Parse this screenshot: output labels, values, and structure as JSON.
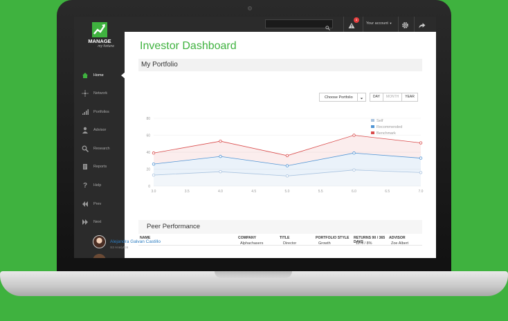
{
  "sidebar": {
    "logo": {
      "title": "MANAGE",
      "subtitle": "my fortune"
    },
    "items": [
      {
        "label": "Home",
        "icon": "home-icon"
      },
      {
        "label": "Network",
        "icon": "network-icon"
      },
      {
        "label": "Portfolios",
        "icon": "bars-icon"
      },
      {
        "label": "Advisor",
        "icon": "person-icon"
      },
      {
        "label": "Research",
        "icon": "search-icon"
      },
      {
        "label": "Reports",
        "icon": "document-icon"
      },
      {
        "label": "Help",
        "icon": "question-icon"
      },
      {
        "label": "Prev",
        "icon": "double-left-icon"
      },
      {
        "label": "Next",
        "icon": "double-right-icon"
      }
    ]
  },
  "topbar": {
    "search_placeholder": "",
    "alert_count": "1",
    "account_label": "Your account"
  },
  "main": {
    "title": "Investor Dashboard",
    "portfolio_section": "My Portfolio",
    "choose_portfolio": "Choose Portfolio",
    "periods": [
      "DAY",
      "MONTH",
      "YEAR"
    ],
    "peer_section": "Peer Performance"
  },
  "chart_data": {
    "type": "area",
    "x": [
      3.0,
      4.0,
      5.0,
      6.0,
      7.0
    ],
    "xticks": [
      "3.0",
      "3.5",
      "4.0",
      "4.5",
      "5.0",
      "5.5",
      "6.0",
      "6.5",
      "7.0"
    ],
    "yticks": [
      "0",
      "20",
      "40",
      "60",
      "80"
    ],
    "ylim": [
      0,
      80
    ],
    "xlim": [
      3.0,
      7.0
    ],
    "grid": true,
    "legend_position": "top-right",
    "series": [
      {
        "name": "Self",
        "color": "#a9c3df",
        "values": [
          13,
          17,
          12,
          19,
          16
        ]
      },
      {
        "name": "Recommended",
        "color": "#4f94d4",
        "values": [
          26,
          35,
          24,
          39,
          33
        ]
      },
      {
        "name": "Benchmark",
        "color": "#d94a4a",
        "values": [
          39,
          53,
          36,
          60,
          51
        ]
      }
    ]
  },
  "table": {
    "headers": [
      "NAME",
      "COMPANY",
      "TITLE",
      "PORTFOLIO STYLE",
      "RETURNS 90 / 365 DAYS",
      "ADVISOR"
    ],
    "rows": [
      {
        "name": "Alejandra Galvan Castillo",
        "sub": "S2 Analytics",
        "company": "Alphachasers",
        "title": "Director",
        "style": "Growth",
        "returns": "12% / 8%",
        "advisor": "Zoe Albert"
      }
    ]
  }
}
